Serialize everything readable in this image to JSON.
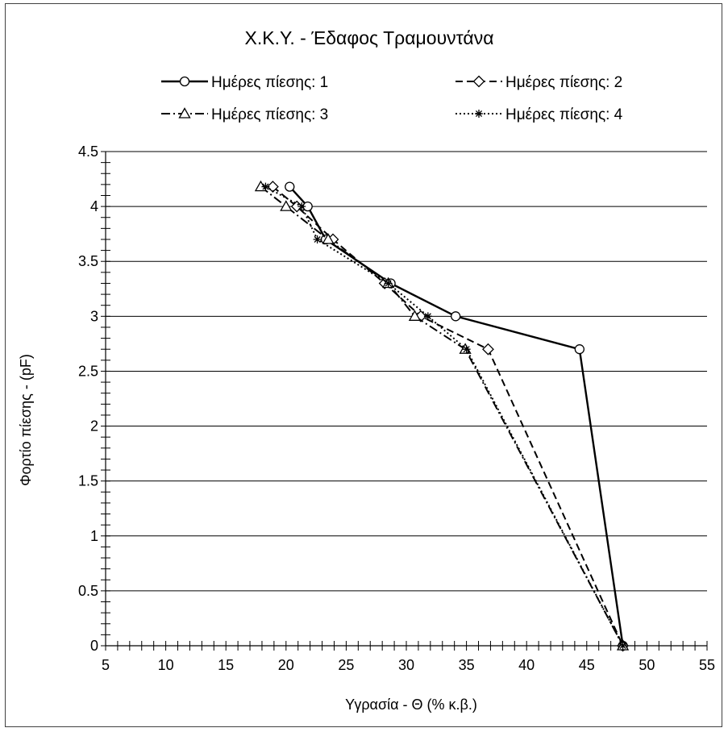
{
  "chart_data": {
    "type": "line",
    "title": "Χ.Κ.Υ. - Έδαφος Τραμουντάνα",
    "xlabel": "Υγρασία - Θ (% κ.β.)",
    "ylabel": "Φορτίο πίεσης - (pF)",
    "xlim": [
      5,
      55
    ],
    "ylim": [
      0,
      4.5
    ],
    "x_ticks": [
      5,
      10,
      15,
      20,
      25,
      30,
      35,
      40,
      45,
      50,
      55
    ],
    "y_ticks": [
      0,
      0.5,
      1,
      1.5,
      2,
      2.5,
      3,
      3.5,
      4,
      4.5
    ],
    "x_minor_step": 1,
    "y_minor_step": 0.1,
    "grid": "horizontal-major",
    "legend_position": "top",
    "series": [
      {
        "name": "Ημέρες πίεσης: 1",
        "marker": "circle",
        "dash": "solid",
        "color": "#000000",
        "points": [
          [
            20.3,
            4.18
          ],
          [
            21.8,
            4.0
          ],
          [
            23.3,
            3.7
          ],
          [
            28.7,
            3.3
          ],
          [
            34.1,
            3.0
          ],
          [
            44.4,
            2.7
          ],
          [
            48.0,
            0.0
          ]
        ]
      },
      {
        "name": "Ημέρες πίεσης: 2",
        "marker": "diamond",
        "dash": "dashed",
        "color": "#000000",
        "points": [
          [
            18.9,
            4.18
          ],
          [
            20.9,
            4.0
          ],
          [
            23.9,
            3.7
          ],
          [
            28.2,
            3.3
          ],
          [
            31.2,
            3.0
          ],
          [
            36.8,
            2.7
          ],
          [
            48.0,
            0.0
          ]
        ]
      },
      {
        "name": "Ημέρες πίεσης: 3",
        "marker": "triangle",
        "dash": "dashdot",
        "color": "#000000",
        "points": [
          [
            17.9,
            4.18
          ],
          [
            20.0,
            4.0
          ],
          [
            23.5,
            3.7
          ],
          [
            28.5,
            3.3
          ],
          [
            30.7,
            3.0
          ],
          [
            34.9,
            2.7
          ],
          [
            48.0,
            0.0
          ]
        ]
      },
      {
        "name": "Ημέρες πίεσης: 4",
        "marker": "asterisk",
        "dash": "dotted",
        "color": "#000000",
        "points": [
          [
            18.3,
            4.18
          ],
          [
            21.3,
            4.0
          ],
          [
            22.6,
            3.7
          ],
          [
            28.5,
            3.3
          ],
          [
            31.8,
            3.0
          ],
          [
            35.0,
            2.7
          ],
          [
            48.0,
            0.0
          ]
        ]
      }
    ]
  }
}
